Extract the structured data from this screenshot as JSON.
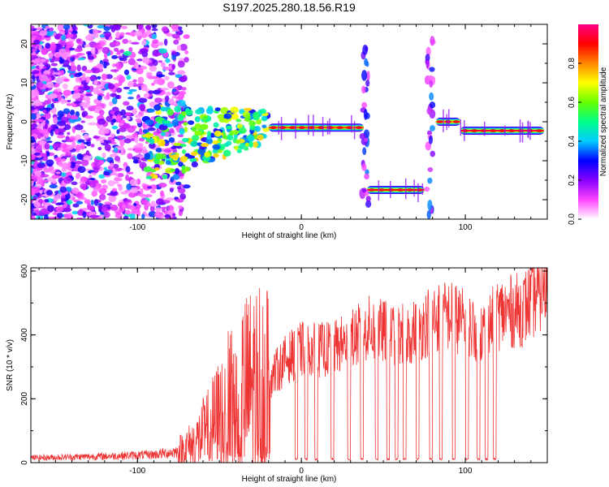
{
  "title": "S197.2025.280.18.56.R19",
  "chart_data": [
    {
      "type": "heatmap",
      "name": "spectrogram",
      "xlabel": "Height of straight line (km)",
      "ylabel": "Frequency (Hz)",
      "xlim": [
        -165,
        150
      ],
      "ylim": [
        -25,
        25
      ],
      "xticks": [
        -100,
        0,
        100
      ],
      "yticks": [
        -20,
        -10,
        0,
        10,
        20
      ],
      "xtick_labels": [
        "-100",
        "0",
        "100"
      ],
      "ytick_labels": [
        "-20",
        "-10",
        "0",
        "10",
        "20"
      ],
      "colorbar": {
        "label": "Normalized spectral amplitude",
        "range": [
          0,
          1
        ],
        "ticks": [
          0,
          0.2,
          0.4,
          0.6,
          0.8
        ],
        "tick_labels": [
          "0.0",
          "0.2",
          "0.4",
          "0.6",
          "0.8"
        ],
        "colors": [
          "#ffffff",
          "#ff44ff",
          "#8800ff",
          "#0000ff",
          "#00ccff",
          "#00ff88",
          "#66ff00",
          "#ffff00",
          "#ff8800",
          "#ff0000",
          "#ff0088"
        ]
      },
      "tracks": [
        {
          "x_start": -20,
          "x_end": 38,
          "frequency": -1.5,
          "amplitude": 0.85
        },
        {
          "x_start": 40,
          "x_end": 75,
          "frequency": -17.5,
          "amplitude": 0.9
        },
        {
          "x_start": 82,
          "x_end": 97,
          "frequency": 0.0,
          "amplitude": 0.8
        },
        {
          "x_start": 97,
          "x_end": 148,
          "frequency": -2.3,
          "amplitude": 0.95
        }
      ],
      "gaps": [
        [
          38,
          40
        ],
        [
          75,
          82
        ]
      ]
    },
    {
      "type": "line",
      "name": "snr",
      "xlabel": "Height of straight line (km)",
      "ylabel": "SNR (10 * v/v)",
      "xlim": [
        -165,
        150
      ],
      "ylim": [
        0,
        610
      ],
      "xticks": [
        -100,
        0,
        100
      ],
      "yticks": [
        0,
        200,
        400,
        600
      ],
      "xtick_labels": [
        "-100",
        "0",
        "100"
      ],
      "ytick_labels": [
        "0",
        "200",
        "400",
        "600"
      ],
      "color": "#ee3333",
      "anchors": [
        [
          -165,
          15
        ],
        [
          -120,
          20
        ],
        [
          -90,
          25
        ],
        [
          -75,
          35
        ],
        [
          -65,
          60
        ],
        [
          -55,
          110
        ],
        [
          -45,
          170
        ],
        [
          -35,
          220
        ],
        [
          -25,
          250
        ],
        [
          -18,
          270
        ],
        [
          -10,
          320
        ],
        [
          0,
          355
        ],
        [
          10,
          350
        ],
        [
          20,
          360
        ],
        [
          30,
          380
        ],
        [
          40,
          420
        ],
        [
          50,
          410
        ],
        [
          60,
          400
        ],
        [
          70,
          410
        ],
        [
          80,
          455
        ],
        [
          90,
          460
        ],
        [
          95,
          450
        ],
        [
          105,
          420
        ],
        [
          112,
          410
        ],
        [
          120,
          465
        ],
        [
          135,
          480
        ],
        [
          150,
          560
        ]
      ],
      "dropouts": [
        -3,
        3,
        9,
        19,
        29,
        37,
        46,
        53,
        58,
        63,
        71,
        79,
        85,
        93,
        101,
        108,
        113,
        118
      ]
    }
  ]
}
